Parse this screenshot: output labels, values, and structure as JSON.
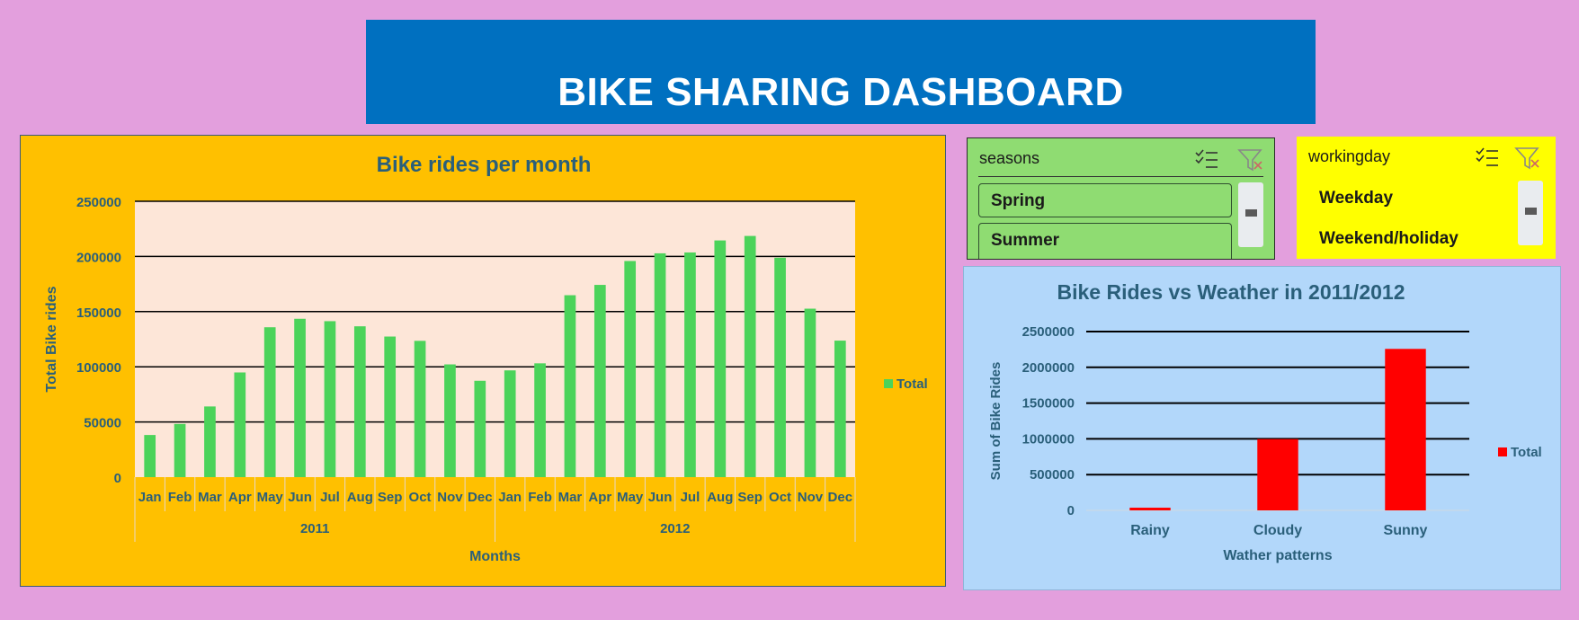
{
  "dashboard": {
    "title": "BIKE SHARING DASHBOARD"
  },
  "colors": {
    "background": "#e39fdd",
    "banner": "#0070c0",
    "panel_monthly": "#ffc000",
    "plot_monthly": "#fde6d8",
    "bar_monthly": "#4bd35a",
    "panel_weather": "#b2d7fa",
    "bar_weather": "#ff0000",
    "slicer_seasons": "#8fdc72",
    "slicer_workingday": "#ffff00",
    "chart_text": "#2a5f7a"
  },
  "slicers": {
    "seasons": {
      "title": "seasons",
      "items": [
        "Spring",
        "Summer"
      ],
      "icons": [
        "multi-select-icon",
        "clear-filter-icon"
      ]
    },
    "workingday": {
      "title": "workingday",
      "items": [
        "Weekday",
        "Weekend/holiday"
      ],
      "icons": [
        "multi-select-icon",
        "clear-filter-icon"
      ]
    }
  },
  "chart_data": [
    {
      "type": "bar",
      "title": "Bike rides per month",
      "xlabel": "Months",
      "ylabel": "Total Bike rides",
      "ylim": [
        0,
        250000
      ],
      "yticks": [
        "0",
        "50000",
        "100000",
        "150000",
        "200000",
        "250000"
      ],
      "groups": [
        {
          "label": "2011",
          "categories": [
            "Jan",
            "Feb",
            "Mar",
            "Apr",
            "May",
            "Jun",
            "Jul",
            "Aug",
            "Sep",
            "Oct",
            "Nov",
            "Dec"
          ]
        },
        {
          "label": "2012",
          "categories": [
            "Jan",
            "Feb",
            "Mar",
            "Apr",
            "May",
            "Jun",
            "Jul",
            "Aug",
            "Sep",
            "Oct",
            "Nov",
            "Dec"
          ]
        }
      ],
      "series": [
        {
          "name": "Total",
          "values": [
            38189,
            48215,
            64045,
            94870,
            135821,
            143512,
            141341,
            136691,
            127418,
            123511,
            102167,
            87323,
            96744,
            103137,
            164875,
            174224,
            195865,
            202830,
            203607,
            214503,
            218573,
            198841,
            152664,
            123713
          ]
        }
      ],
      "legend": "right",
      "grid": true
    },
    {
      "type": "bar",
      "title": "Bike Rides vs Weather in 2011/2012",
      "xlabel": "Wather patterns",
      "ylabel": "Sum of Bike Rides",
      "ylim": [
        0,
        2500000
      ],
      "yticks": [
        "0",
        "500000",
        "1000000",
        "1500000",
        "2000000",
        "2500000"
      ],
      "categories": [
        "Rainy",
        "Cloudy",
        "Sunny"
      ],
      "series": [
        {
          "name": "Total",
          "values": [
            37869,
            996858,
            2257952
          ]
        }
      ],
      "legend": "right",
      "grid": true
    }
  ]
}
